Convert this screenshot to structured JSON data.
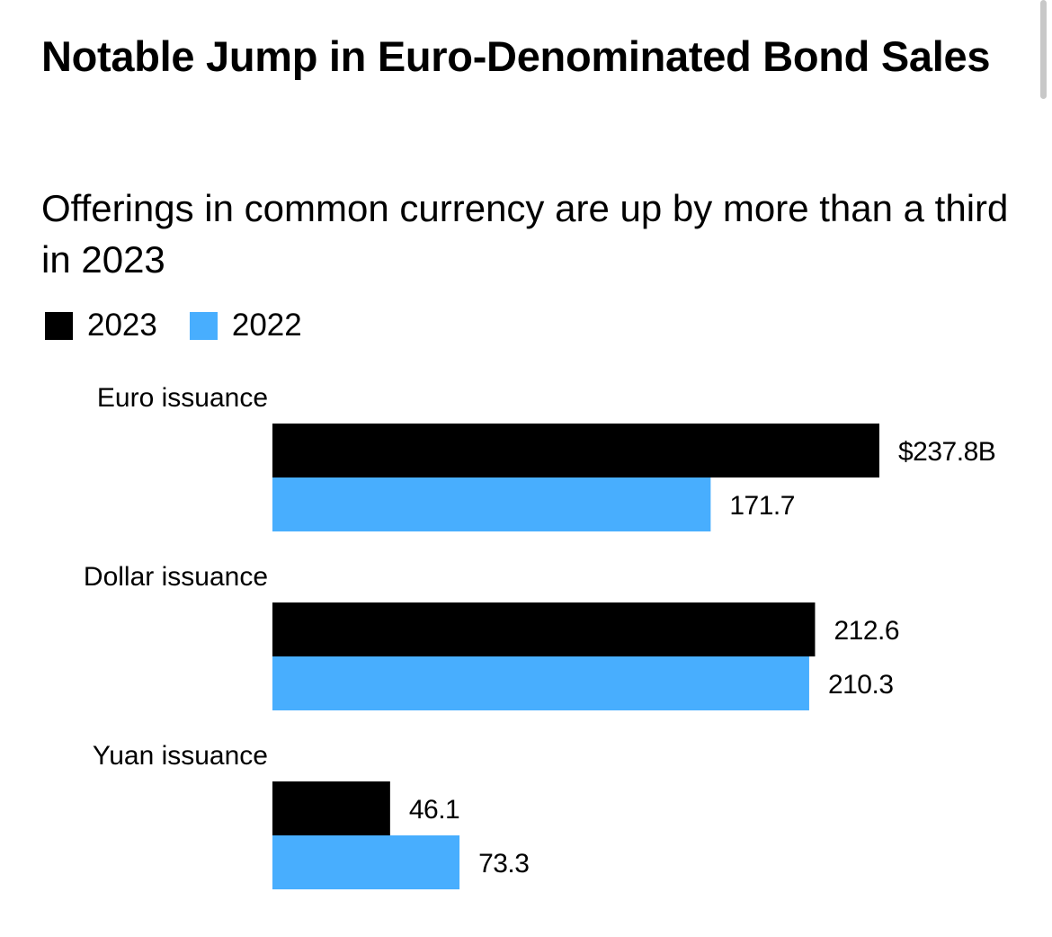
{
  "chart_data": {
    "type": "bar",
    "orientation": "horizontal",
    "title": "Notable Jump in Euro-Denominated Bond Sales",
    "subtitle": "Offerings in common currency are up by more than a third in 2023",
    "categories": [
      "Euro issuance",
      "Dollar issuance",
      "Yuan issuance"
    ],
    "series": [
      {
        "name": "2023",
        "color": "#000000",
        "values": [
          237.8,
          212.6,
          46.1
        ],
        "labels": [
          "$237.8B",
          "212.6",
          "46.1"
        ]
      },
      {
        "name": "2022",
        "color": "#48aefe",
        "values": [
          171.7,
          210.3,
          73.3
        ],
        "labels": [
          "171.7",
          "210.3",
          "73.3"
        ]
      }
    ],
    "xlabel": "",
    "ylabel": "",
    "xlim": [
      0,
      237.8
    ],
    "grid": false,
    "legend": "top-left"
  }
}
